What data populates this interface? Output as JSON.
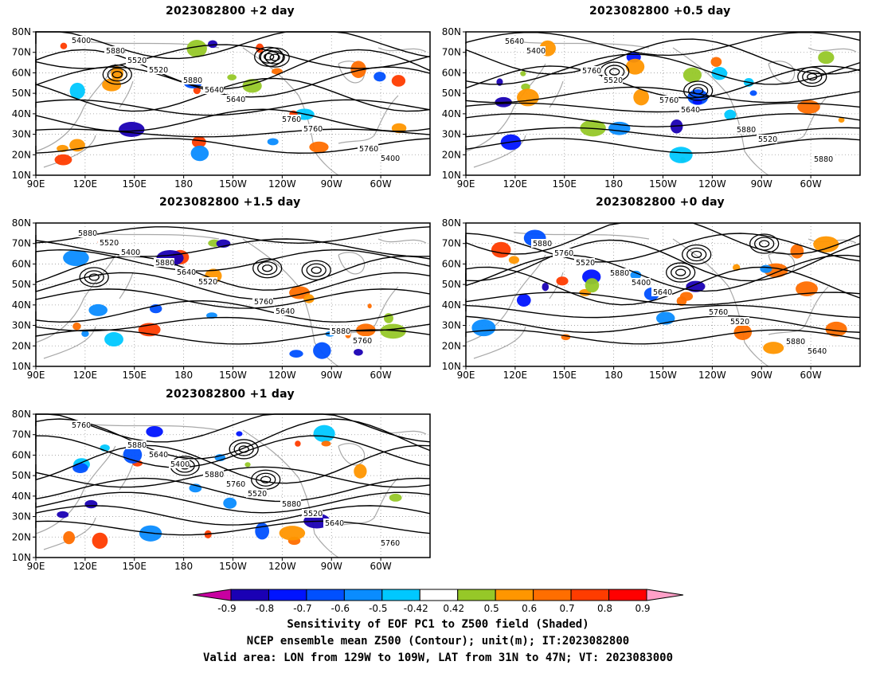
{
  "panels": [
    {
      "title": "2023082800 +2 day",
      "contour_labels": [
        "5400",
        "5520",
        "5640",
        "5760",
        "5400",
        "5520",
        "5640",
        "5760",
        "5760",
        "5880",
        "5880"
      ]
    },
    {
      "title": "2023082800 +0.5 day",
      "contour_labels": [
        "5400",
        "5520",
        "5640",
        "5520",
        "5640",
        "5760",
        "5760",
        "5880",
        "5880"
      ]
    },
    {
      "title": "2023082800 +1.5 day",
      "contour_labels": [
        "5400",
        "5520",
        "5640",
        "5760",
        "5520",
        "5640",
        "5760",
        "5880",
        "5880",
        "5880"
      ]
    },
    {
      "title": "2023082800 +0 day",
      "contour_labels": [
        "5520",
        "5640",
        "5520",
        "5640",
        "5760",
        "5400",
        "5760",
        "5880",
        "5880",
        "5880"
      ]
    },
    {
      "title": "2023082800 +1 day",
      "contour_labels": [
        "5400",
        "5520",
        "5640",
        "5760",
        "5640",
        "5760",
        "5520",
        "5760",
        "5880",
        "5880",
        "5880"
      ]
    }
  ],
  "axes": {
    "lat_labels": [
      "80N",
      "70N",
      "60N",
      "50N",
      "40N",
      "30N",
      "20N",
      "10N"
    ],
    "lon_labels": [
      "90E",
      "120E",
      "150E",
      "180",
      "150W",
      "120W",
      "90W",
      "60W"
    ]
  },
  "colorbar": {
    "labels": [
      "-0.9",
      "-0.8",
      "-0.7",
      "-0.6",
      "-0.5",
      "-0.42",
      "0.42",
      "0.5",
      "0.6",
      "0.7",
      "0.8",
      "0.9"
    ],
    "colors": [
      "#1a00b4",
      "#0014ff",
      "#0050ff",
      "#0a8cff",
      "#00c8ff",
      "#ffffff",
      "#96c828",
      "#ff9600",
      "#ff6e00",
      "#ff3c00",
      "#ff0000"
    ],
    "under_color": "#c800a0",
    "over_color": "#ffa0c8"
  },
  "colors": {
    "contour": "#000000",
    "coast": "#a8a8a8",
    "grid": "#999999"
  },
  "footer": {
    "line1": "Sensitivity of EOF PC1 to Z500 field (Shaded)",
    "line2": "NCEP ensemble mean Z500 (Contour); unit(m); IT:2023082800",
    "line3": "Valid area: LON from 129W to 109W, LAT from 31N to 47N; VT: 2023083000"
  }
}
